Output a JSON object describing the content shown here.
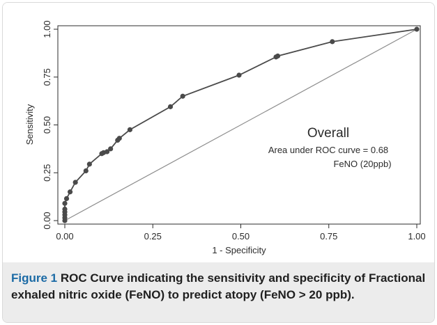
{
  "chart_data": {
    "type": "line",
    "xlabel": "1 - Specificity",
    "ylabel": "Sensitivity",
    "xlim": [
      0,
      1
    ],
    "ylim": [
      0,
      1
    ],
    "x_ticks": [
      "0.00",
      "0.25",
      "0.50",
      "0.75",
      "1.00"
    ],
    "y_ticks": [
      "0.00",
      "0.25",
      "0.50",
      "0.75",
      "1.00"
    ],
    "grid": false,
    "series": [
      {
        "points": [
          [
            0.0,
            0.0
          ],
          [
            0.0,
            0.015
          ],
          [
            0.0,
            0.03
          ],
          [
            0.0,
            0.045
          ],
          [
            0.0,
            0.06
          ],
          [
            0.0,
            0.09
          ],
          [
            0.005,
            0.115
          ],
          [
            0.015,
            0.15
          ],
          [
            0.03,
            0.2
          ],
          [
            0.06,
            0.26
          ],
          [
            0.07,
            0.295
          ],
          [
            0.105,
            0.35
          ],
          [
            0.11,
            0.355
          ],
          [
            0.12,
            0.36
          ],
          [
            0.13,
            0.375
          ],
          [
            0.15,
            0.42
          ],
          [
            0.155,
            0.43
          ],
          [
            0.185,
            0.475
          ],
          [
            0.3,
            0.595
          ],
          [
            0.335,
            0.65
          ],
          [
            0.495,
            0.76
          ],
          [
            0.6,
            0.855
          ],
          [
            0.605,
            0.86
          ],
          [
            0.76,
            0.935
          ],
          [
            1.0,
            1.0
          ]
        ]
      },
      {
        "points": [
          [
            0,
            0
          ],
          [
            1,
            1
          ]
        ]
      }
    ],
    "annotations": {
      "group": "Overall",
      "auc": "Area under ROC curve = 0.68",
      "marker": "FeNO (20ppb)"
    },
    "colors": {
      "roc": "#4a4a4a",
      "reference": "#8c8c8c",
      "caption_label": "#1b6aa5"
    }
  },
  "caption": {
    "label": "Figure 1",
    "text": " ROC Curve indicating the sensitivity and specificity of Fractional exhaled nitric oxide (FeNO) to predict atopy (FeNO > 20 ppb)."
  }
}
